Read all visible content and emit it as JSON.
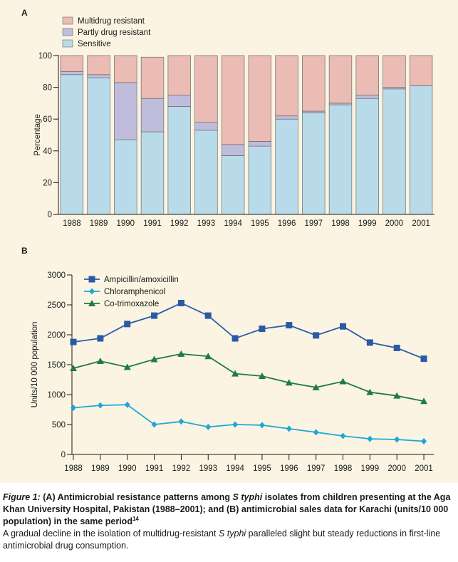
{
  "chart_data": [
    {
      "type": "bar",
      "stacked": true,
      "panel_label": "A",
      "title": "",
      "xlabel": "",
      "ylabel": "Percentage",
      "ylim": [
        0,
        100
      ],
      "yticks": [
        0,
        20,
        40,
        60,
        80,
        100
      ],
      "grid": false,
      "legend_position": "top-left",
      "categories": [
        "1988",
        "1989",
        "1990",
        "1991",
        "1992",
        "1993",
        "1994",
        "1995",
        "1996",
        "1997",
        "1998",
        "1999",
        "2000",
        "2001"
      ],
      "series": [
        {
          "name": "Sensitive",
          "color": "#b9dbe9",
          "values": [
            88,
            86,
            47,
            52,
            68,
            53,
            37,
            43,
            60,
            64,
            69,
            73,
            79,
            81
          ]
        },
        {
          "name": "Partly drug resistant",
          "color": "#c0bcdb",
          "values": [
            2,
            2,
            36,
            21,
            7,
            5,
            7,
            3,
            2,
            1,
            1,
            2,
            1,
            0
          ]
        },
        {
          "name": "Multidrug resistant",
          "color": "#ebbcb3",
          "values": [
            10,
            12,
            17,
            26,
            25,
            42,
            56,
            54,
            38,
            35,
            30,
            25,
            20,
            19
          ]
        }
      ]
    },
    {
      "type": "line",
      "panel_label": "B",
      "title": "",
      "xlabel": "",
      "ylabel": "Units/10 000 population",
      "ylim": [
        0,
        3000
      ],
      "yticks": [
        0,
        500,
        1000,
        1500,
        2000,
        2500,
        3000
      ],
      "grid": false,
      "legend_position": "top-center",
      "x": [
        "1988",
        "1989",
        "1990",
        "1991",
        "1992",
        "1993",
        "1994",
        "1995",
        "1996",
        "1997",
        "1998",
        "1999",
        "2000",
        "2001"
      ],
      "series": [
        {
          "name": "Ampicillin/amoxicillin",
          "color": "#2a5aa6",
          "marker": "square",
          "values": [
            1880,
            1940,
            2180,
            2320,
            2530,
            2320,
            1940,
            2100,
            2160,
            1990,
            2140,
            1870,
            1780,
            1600
          ]
        },
        {
          "name": "Chloramphenicol",
          "color": "#1ea7d6",
          "marker": "diamond",
          "values": [
            780,
            820,
            830,
            500,
            550,
            460,
            500,
            490,
            430,
            370,
            310,
            260,
            250,
            220
          ]
        },
        {
          "name": "Co-trimoxazole",
          "color": "#1f7a47",
          "marker": "triangle",
          "values": [
            1440,
            1560,
            1460,
            1590,
            1680,
            1640,
            1350,
            1310,
            1200,
            1120,
            1220,
            1040,
            980,
            890
          ]
        }
      ]
    }
  ],
  "caption": {
    "figure_label": "Figure 1:",
    "head_1": " (A) Antimicrobial resistance patterns among ",
    "organism_genus": "S",
    "organism_species": "typhi",
    "head_2": " isolates from children presenting at the Aga Khan University Hospital, Pakistan (1988–2001); and (B) antimicrobial sales data for Karachi (units/10 000 population) in the same period",
    "reference": "14",
    "body_1": "A gradual decline in the isolation of multidrug-resistant ",
    "body_2": " paralleled slight but steady reductions in first-line antimicrobial drug consumption."
  },
  "colors": {
    "background": "#fbf4e2",
    "axis": "#1a1a1a",
    "bar_outline": "#6a6a6a"
  }
}
